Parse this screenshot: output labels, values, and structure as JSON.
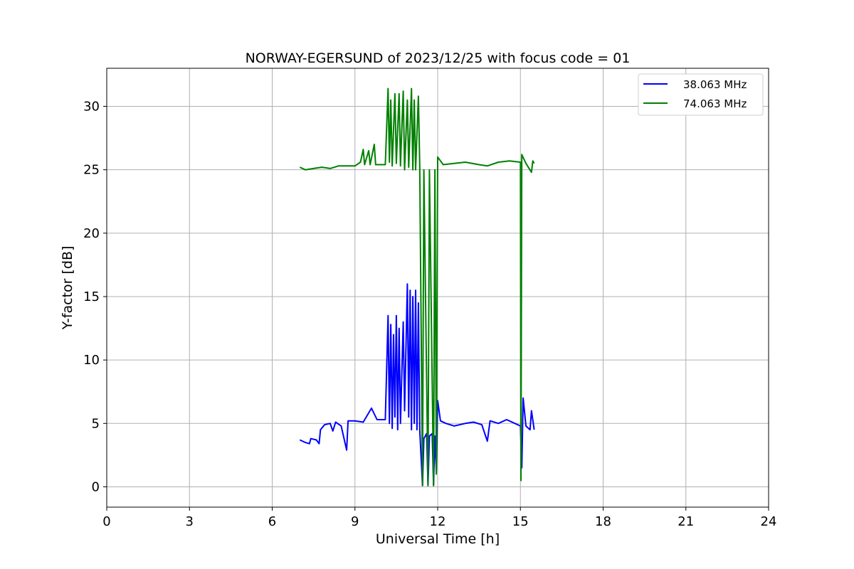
{
  "chart_data": {
    "type": "line",
    "title": "NORWAY-EGERSUND of 2023/12/25 with focus code = 01",
    "xlabel": "Universal Time [h]",
    "ylabel": "Y-factor [dB]",
    "xlim": [
      0,
      24
    ],
    "ylim": [
      -1.6,
      33
    ],
    "xticks": [
      0,
      3,
      6,
      9,
      12,
      15,
      18,
      21,
      24
    ],
    "yticks": [
      0,
      5,
      10,
      15,
      20,
      25,
      30
    ],
    "grid": true,
    "legend_position": "top-right",
    "series": [
      {
        "name": "38.063 MHz",
        "color": "#0000ff",
        "points": [
          [
            7.0,
            3.7
          ],
          [
            7.2,
            3.5
          ],
          [
            7.35,
            3.4
          ],
          [
            7.4,
            3.8
          ],
          [
            7.6,
            3.7
          ],
          [
            7.7,
            3.4
          ],
          [
            7.75,
            4.5
          ],
          [
            7.9,
            4.9
          ],
          [
            8.1,
            5.0
          ],
          [
            8.2,
            4.4
          ],
          [
            8.3,
            5.1
          ],
          [
            8.5,
            4.8
          ],
          [
            8.7,
            2.9
          ],
          [
            8.75,
            5.2
          ],
          [
            9.0,
            5.2
          ],
          [
            9.3,
            5.1
          ],
          [
            9.6,
            6.2
          ],
          [
            9.8,
            5.3
          ],
          [
            10.1,
            5.3
          ],
          [
            10.2,
            13.5
          ],
          [
            10.25,
            5.0
          ],
          [
            10.3,
            12.8
          ],
          [
            10.35,
            4.6
          ],
          [
            10.4,
            12.0
          ],
          [
            10.45,
            5.5
          ],
          [
            10.5,
            13.5
          ],
          [
            10.55,
            4.5
          ],
          [
            10.6,
            12.5
          ],
          [
            10.65,
            5.0
          ],
          [
            10.75,
            13.0
          ],
          [
            10.8,
            6.0
          ],
          [
            10.9,
            16.0
          ],
          [
            10.95,
            5.5
          ],
          [
            11.0,
            15.5
          ],
          [
            11.05,
            4.5
          ],
          [
            11.1,
            15.0
          ],
          [
            11.15,
            5.0
          ],
          [
            11.2,
            15.5
          ],
          [
            11.25,
            4.5
          ],
          [
            11.3,
            14.5
          ],
          [
            11.35,
            4.5
          ],
          [
            11.45,
            0.1
          ],
          [
            11.5,
            3.8
          ],
          [
            11.6,
            4.2
          ],
          [
            11.65,
            0.1
          ],
          [
            11.7,
            4.0
          ],
          [
            11.8,
            4.2
          ],
          [
            11.85,
            0.1
          ],
          [
            11.9,
            4.0
          ],
          [
            11.95,
            1.2
          ],
          [
            12.0,
            6.8
          ],
          [
            12.1,
            5.2
          ],
          [
            12.3,
            5.0
          ],
          [
            12.6,
            4.8
          ],
          [
            13.0,
            5.0
          ],
          [
            13.3,
            5.1
          ],
          [
            13.6,
            4.9
          ],
          [
            13.8,
            3.6
          ],
          [
            13.9,
            5.2
          ],
          [
            14.2,
            5.0
          ],
          [
            14.5,
            5.3
          ],
          [
            14.8,
            5.0
          ],
          [
            15.0,
            4.8
          ],
          [
            15.05,
            1.5
          ],
          [
            15.1,
            7.0
          ],
          [
            15.2,
            4.8
          ],
          [
            15.35,
            4.5
          ],
          [
            15.4,
            6.0
          ],
          [
            15.5,
            4.5
          ]
        ]
      },
      {
        "name": "74.063 MHz",
        "color": "#008000",
        "points": [
          [
            7.0,
            25.2
          ],
          [
            7.2,
            25.0
          ],
          [
            7.5,
            25.1
          ],
          [
            7.8,
            25.2
          ],
          [
            8.1,
            25.1
          ],
          [
            8.4,
            25.3
          ],
          [
            8.7,
            25.3
          ],
          [
            9.0,
            25.3
          ],
          [
            9.2,
            25.6
          ],
          [
            9.3,
            26.6
          ],
          [
            9.35,
            25.4
          ],
          [
            9.5,
            26.5
          ],
          [
            9.55,
            25.4
          ],
          [
            9.7,
            27.0
          ],
          [
            9.75,
            25.4
          ],
          [
            10.1,
            25.4
          ],
          [
            10.2,
            31.4
          ],
          [
            10.25,
            25.6
          ],
          [
            10.3,
            30.5
          ],
          [
            10.35,
            25.3
          ],
          [
            10.45,
            31.0
          ],
          [
            10.5,
            25.5
          ],
          [
            10.6,
            31.0
          ],
          [
            10.65,
            25.3
          ],
          [
            10.75,
            31.2
          ],
          [
            10.8,
            25.0
          ],
          [
            10.9,
            30.5
          ],
          [
            10.95,
            25.2
          ],
          [
            11.05,
            31.4
          ],
          [
            11.1,
            25.0
          ],
          [
            11.15,
            30.5
          ],
          [
            11.2,
            25.0
          ],
          [
            11.3,
            30.8
          ],
          [
            11.35,
            25.3
          ],
          [
            11.45,
            0.1
          ],
          [
            11.5,
            25.0
          ],
          [
            11.65,
            0.1
          ],
          [
            11.7,
            25.0
          ],
          [
            11.85,
            0.1
          ],
          [
            11.9,
            25.0
          ],
          [
            11.95,
            1.0
          ],
          [
            12.0,
            26.0
          ],
          [
            12.2,
            25.4
          ],
          [
            12.6,
            25.5
          ],
          [
            13.0,
            25.6
          ],
          [
            13.5,
            25.4
          ],
          [
            13.8,
            25.3
          ],
          [
            14.2,
            25.6
          ],
          [
            14.6,
            25.7
          ],
          [
            15.0,
            25.6
          ],
          [
            15.02,
            0.5
          ],
          [
            15.05,
            26.2
          ],
          [
            15.2,
            25.5
          ],
          [
            15.4,
            24.8
          ],
          [
            15.45,
            25.7
          ],
          [
            15.5,
            25.5
          ]
        ]
      }
    ]
  }
}
